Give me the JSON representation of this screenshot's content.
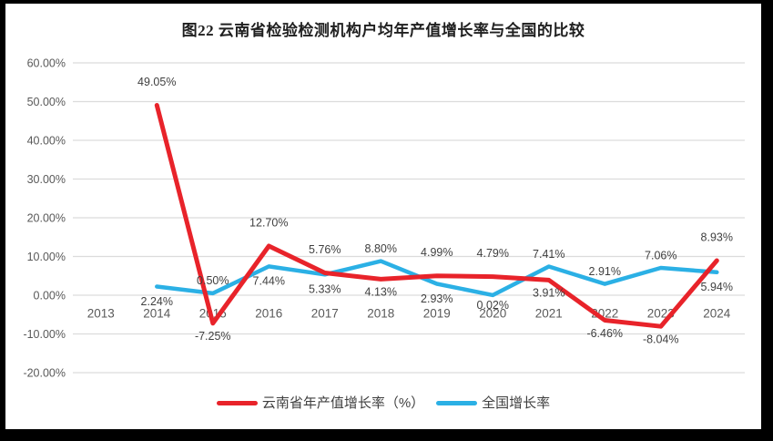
{
  "frame": {
    "border_color": "#000000",
    "background_color": "#ffffff"
  },
  "title": "图22  云南省检验检测机构户均年产值增长率与全国的比较",
  "colors": {
    "yunnan_series": "#e8232a",
    "national_series": "#2bb0e5",
    "gridline": "#dcdcdc",
    "axis_text": "#595959",
    "data_label_text": "#3f3f3f",
    "title_text": "#1f1f1f"
  },
  "chart_data": {
    "type": "line",
    "title": "图22  云南省检验检测机构户均年产值增长率与全国的比较",
    "categories": [
      "2013",
      "2014",
      "2015",
      "2016",
      "2017",
      "2018",
      "2019",
      "2020",
      "2021",
      "2022",
      "2023",
      "2024"
    ],
    "y_axis": {
      "tick_labels": [
        "60.00%",
        "50.00%",
        "40.00%",
        "30.00%",
        "20.00%",
        "10.00%",
        "0.00%",
        "-10.00%",
        "-20.00%"
      ],
      "tick_values": [
        60,
        50,
        40,
        30,
        20,
        10,
        0,
        -10,
        -20
      ],
      "min": -20,
      "max": 60,
      "grid": true
    },
    "series": [
      {
        "name": "云南省年产值增长率（%）",
        "color": "#e8232a",
        "values": [
          null,
          49.05,
          -7.25,
          12.7,
          5.76,
          4.13,
          4.99,
          4.79,
          3.91,
          -6.46,
          -8.04,
          8.93
        ],
        "labels": [
          null,
          "49.05%",
          "-7.25%",
          "12.70%",
          "5.76%",
          "4.13%",
          "4.99%",
          "4.79%",
          "3.91%",
          "-6.46%",
          "-8.04%",
          "8.93%"
        ],
        "label_sides": [
          null,
          "above",
          "below",
          "above",
          "above",
          "below",
          "above",
          "above",
          "below",
          "below",
          "below",
          "above"
        ]
      },
      {
        "name": "全国增长率",
        "color": "#2bb0e5",
        "values": [
          null,
          2.24,
          0.5,
          7.44,
          5.33,
          8.8,
          2.93,
          0.02,
          7.41,
          2.91,
          7.06,
          5.94
        ],
        "labels": [
          null,
          "2.24%",
          "0.50%",
          "7.44%",
          "5.33%",
          "8.80%",
          "2.93%",
          "0.02%",
          "7.41%",
          "2.91%",
          "7.06%",
          "5.94%"
        ],
        "label_sides": [
          null,
          "below",
          "above",
          "below",
          "below",
          "above",
          "below",
          "below",
          "above",
          "above",
          "above",
          "below"
        ]
      }
    ],
    "legend_position": "bottom"
  }
}
